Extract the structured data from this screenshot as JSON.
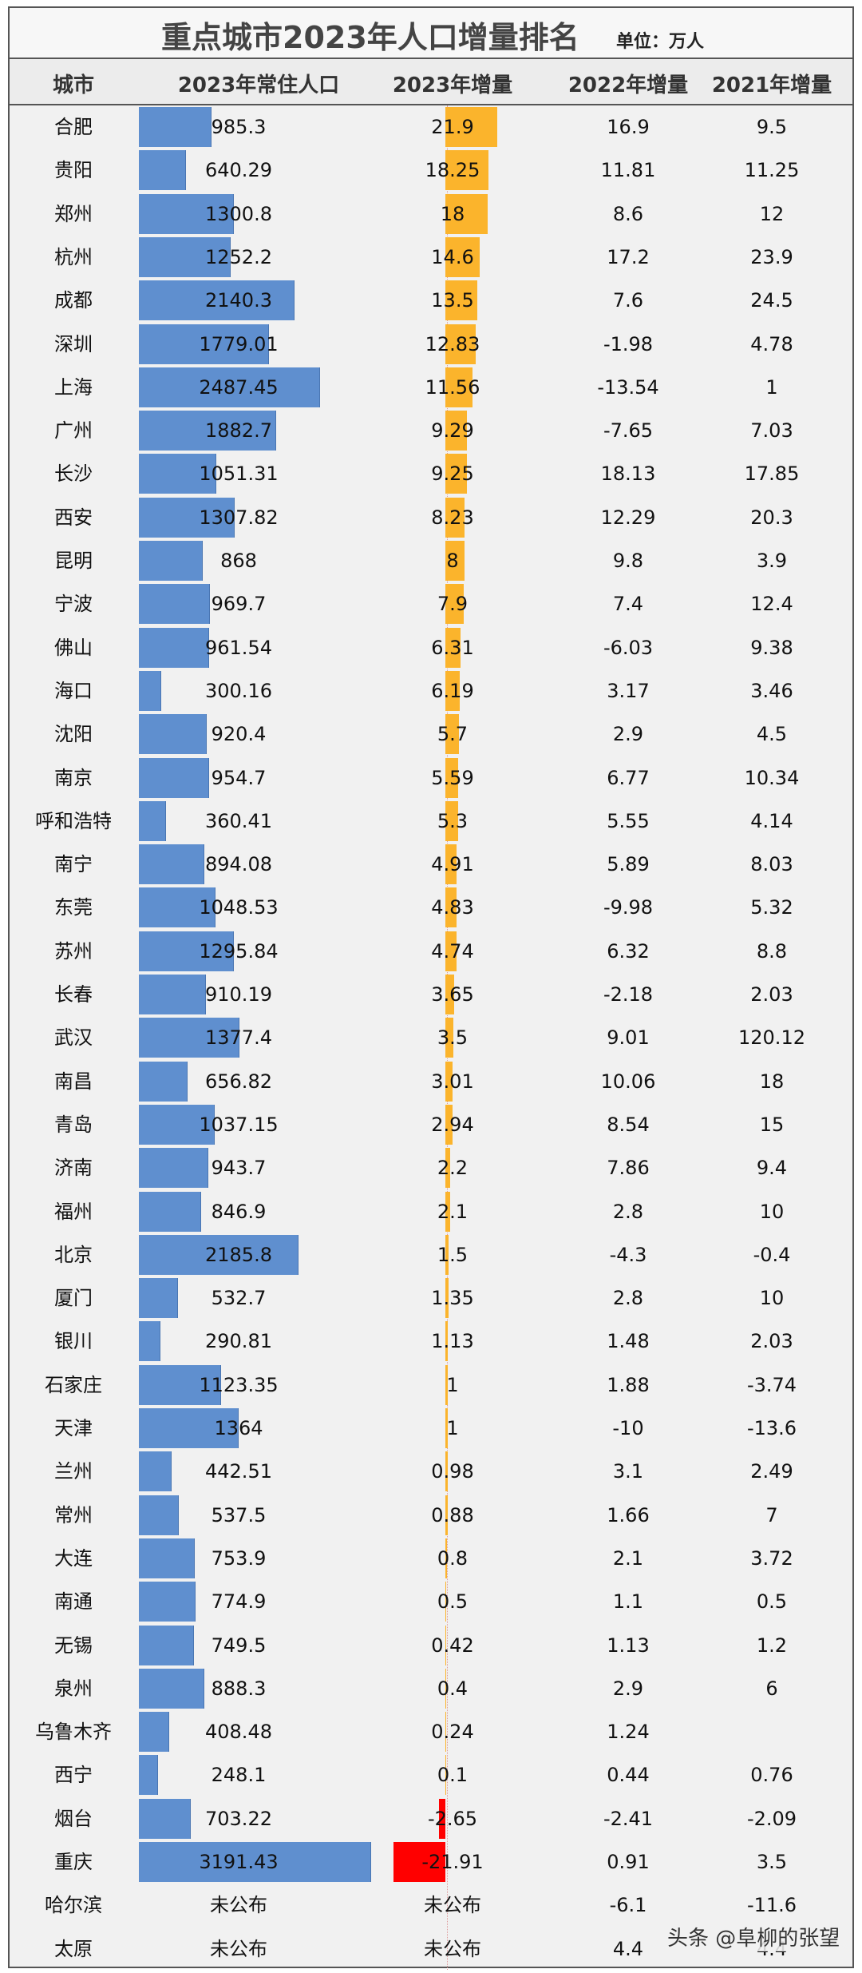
{
  "title": "重点城市2023年人口增量排名",
  "unit": "单位：万人",
  "headers": [
    "城市",
    "2023年常住人口",
    "2023年增量",
    "2022年增量",
    "2021年增量"
  ],
  "watermark": "头条 @阜柳的张望",
  "colors": {
    "population_bar": "#5f8fcf",
    "increase_positive": "#fbb42c",
    "increase_negative": "#ff0000"
  },
  "chart_data": {
    "type": "table",
    "columns": [
      "城市",
      "2023年常住人口",
      "2023年增量",
      "2022年增量",
      "2021年增量"
    ],
    "rows": [
      {
        "city": "合肥",
        "pop2023": "985.3",
        "inc2023": "21.9",
        "inc2022": "16.9",
        "inc2021": "9.5"
      },
      {
        "city": "贵阳",
        "pop2023": "640.29",
        "inc2023": "18.25",
        "inc2022": "11.81",
        "inc2021": "11.25"
      },
      {
        "city": "郑州",
        "pop2023": "1300.8",
        "inc2023": "18",
        "inc2022": "8.6",
        "inc2021": "12"
      },
      {
        "city": "杭州",
        "pop2023": "1252.2",
        "inc2023": "14.6",
        "inc2022": "17.2",
        "inc2021": "23.9"
      },
      {
        "city": "成都",
        "pop2023": "2140.3",
        "inc2023": "13.5",
        "inc2022": "7.6",
        "inc2021": "24.5"
      },
      {
        "city": "深圳",
        "pop2023": "1779.01",
        "inc2023": "12.83",
        "inc2022": "-1.98",
        "inc2021": "4.78"
      },
      {
        "city": "上海",
        "pop2023": "2487.45",
        "inc2023": "11.56",
        "inc2022": "-13.54",
        "inc2021": "1"
      },
      {
        "city": "广州",
        "pop2023": "1882.7",
        "inc2023": "9.29",
        "inc2022": "-7.65",
        "inc2021": "7.03"
      },
      {
        "city": "长沙",
        "pop2023": "1051.31",
        "inc2023": "9.25",
        "inc2022": "18.13",
        "inc2021": "17.85"
      },
      {
        "city": "西安",
        "pop2023": "1307.82",
        "inc2023": "8.23",
        "inc2022": "12.29",
        "inc2021": "20.3"
      },
      {
        "city": "昆明",
        "pop2023": "868",
        "inc2023": "8",
        "inc2022": "9.8",
        "inc2021": "3.9"
      },
      {
        "city": "宁波",
        "pop2023": "969.7",
        "inc2023": "7.9",
        "inc2022": "7.4",
        "inc2021": "12.4"
      },
      {
        "city": "佛山",
        "pop2023": "961.54",
        "inc2023": "6.31",
        "inc2022": "-6.03",
        "inc2021": "9.38"
      },
      {
        "city": "海口",
        "pop2023": "300.16",
        "inc2023": "6.19",
        "inc2022": "3.17",
        "inc2021": "3.46"
      },
      {
        "city": "沈阳",
        "pop2023": "920.4",
        "inc2023": "5.7",
        "inc2022": "2.9",
        "inc2021": "4.5"
      },
      {
        "city": "南京",
        "pop2023": "954.7",
        "inc2023": "5.59",
        "inc2022": "6.77",
        "inc2021": "10.34"
      },
      {
        "city": "呼和浩特",
        "pop2023": "360.41",
        "inc2023": "5.3",
        "inc2022": "5.55",
        "inc2021": "4.14"
      },
      {
        "city": "南宁",
        "pop2023": "894.08",
        "inc2023": "4.91",
        "inc2022": "5.89",
        "inc2021": "8.03"
      },
      {
        "city": "东莞",
        "pop2023": "1048.53",
        "inc2023": "4.83",
        "inc2022": "-9.98",
        "inc2021": "5.32"
      },
      {
        "city": "苏州",
        "pop2023": "1295.84",
        "inc2023": "4.74",
        "inc2022": "6.32",
        "inc2021": "8.8"
      },
      {
        "city": "长春",
        "pop2023": "910.19",
        "inc2023": "3.65",
        "inc2022": "-2.18",
        "inc2021": "2.03"
      },
      {
        "city": "武汉",
        "pop2023": "1377.4",
        "inc2023": "3.5",
        "inc2022": "9.01",
        "inc2021": "120.12"
      },
      {
        "city": "南昌",
        "pop2023": "656.82",
        "inc2023": "3.01",
        "inc2022": "10.06",
        "inc2021": "18"
      },
      {
        "city": "青岛",
        "pop2023": "1037.15",
        "inc2023": "2.94",
        "inc2022": "8.54",
        "inc2021": "15"
      },
      {
        "city": "济南",
        "pop2023": "943.7",
        "inc2023": "2.2",
        "inc2022": "7.86",
        "inc2021": "9.4"
      },
      {
        "city": "福州",
        "pop2023": "846.9",
        "inc2023": "2.1",
        "inc2022": "2.8",
        "inc2021": "10"
      },
      {
        "city": "北京",
        "pop2023": "2185.8",
        "inc2023": "1.5",
        "inc2022": "-4.3",
        "inc2021": "-0.4"
      },
      {
        "city": "厦门",
        "pop2023": "532.7",
        "inc2023": "1.35",
        "inc2022": "2.8",
        "inc2021": "10"
      },
      {
        "city": "银川",
        "pop2023": "290.81",
        "inc2023": "1.13",
        "inc2022": "1.48",
        "inc2021": "2.03"
      },
      {
        "city": "石家庄",
        "pop2023": "1123.35",
        "inc2023": "1",
        "inc2022": "1.88",
        "inc2021": "-3.74"
      },
      {
        "city": "天津",
        "pop2023": "1364",
        "inc2023": "1",
        "inc2022": "-10",
        "inc2021": "-13.6"
      },
      {
        "city": "兰州",
        "pop2023": "442.51",
        "inc2023": "0.98",
        "inc2022": "3.1",
        "inc2021": "2.49"
      },
      {
        "city": "常州",
        "pop2023": "537.5",
        "inc2023": "0.88",
        "inc2022": "1.66",
        "inc2021": "7"
      },
      {
        "city": "大连",
        "pop2023": "753.9",
        "inc2023": "0.8",
        "inc2022": "2.1",
        "inc2021": "3.72"
      },
      {
        "city": "南通",
        "pop2023": "774.9",
        "inc2023": "0.5",
        "inc2022": "1.1",
        "inc2021": "0.5"
      },
      {
        "city": "无锡",
        "pop2023": "749.5",
        "inc2023": "0.42",
        "inc2022": "1.13",
        "inc2021": "1.2"
      },
      {
        "city": "泉州",
        "pop2023": "888.3",
        "inc2023": "0.4",
        "inc2022": "2.9",
        "inc2021": "6"
      },
      {
        "city": "乌鲁木齐",
        "pop2023": "408.48",
        "inc2023": "0.24",
        "inc2022": "1.24",
        "inc2021": ""
      },
      {
        "city": "西宁",
        "pop2023": "248.1",
        "inc2023": "0.1",
        "inc2022": "0.44",
        "inc2021": "0.76"
      },
      {
        "city": "烟台",
        "pop2023": "703.22",
        "inc2023": "-2.65",
        "inc2022": "-2.41",
        "inc2021": "-2.09"
      },
      {
        "city": "重庆",
        "pop2023": "3191.43",
        "inc2023": "-21.91",
        "inc2022": "0.91",
        "inc2021": "3.5"
      },
      {
        "city": "哈尔滨",
        "pop2023": "未公布",
        "inc2023": "未公布",
        "inc2022": "-6.1",
        "inc2021": "-11.6"
      },
      {
        "city": "太原",
        "pop2023": "未公布",
        "inc2023": "未公布",
        "inc2022": "4.4",
        "inc2021": "4.4"
      }
    ]
  }
}
